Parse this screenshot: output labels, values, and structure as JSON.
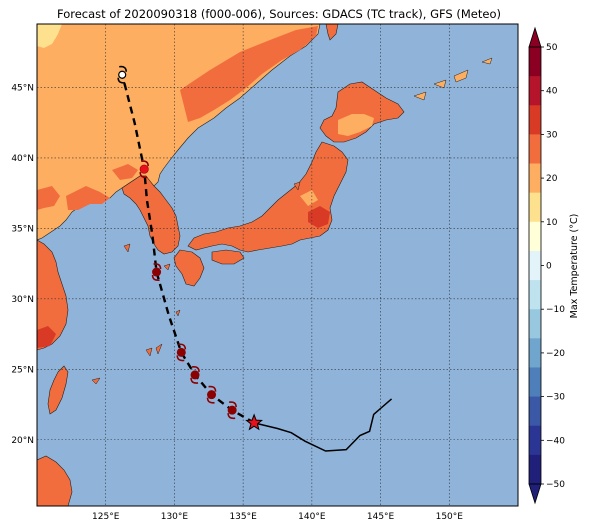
{
  "title": "Forecast of 2020090318 (f000-006), Sources: GDACS (TC track), GFS (Meteo)",
  "map": {
    "lon_range": [
      120,
      155
    ],
    "lat_range": [
      15.3,
      49.5
    ],
    "lon_ticks": [
      {
        "value": 125,
        "label": "125°E"
      },
      {
        "value": 130,
        "label": "130°E"
      },
      {
        "value": 135,
        "label": "135°E"
      },
      {
        "value": 140,
        "label": "140°E"
      },
      {
        "value": 145,
        "label": "145°E"
      },
      {
        "value": 150,
        "label": "150°E"
      }
    ],
    "lat_ticks": [
      {
        "value": 20,
        "label": "20°N"
      },
      {
        "value": 25,
        "label": "25°N"
      },
      {
        "value": 30,
        "label": "30°N"
      },
      {
        "value": 35,
        "label": "35°N"
      },
      {
        "value": 40,
        "label": "40°N"
      },
      {
        "value": 45,
        "label": "45°N"
      }
    ],
    "grid": true,
    "ocean_color": "#8fb3d9"
  },
  "colorbar": {
    "label": "Max Temperature (°C)",
    "ticks": [
      "50",
      "40",
      "30",
      "20",
      "10",
      "0",
      "−10",
      "−20",
      "−30",
      "−40",
      "−50"
    ],
    "colors_top_to_bottom": [
      "#8b0022",
      "#b5142a",
      "#d83a26",
      "#f26d3d",
      "#fdae61",
      "#fee18f",
      "#ffffd8",
      "#e2f4fa",
      "#bfe2ef",
      "#98c8e0",
      "#70a6ce",
      "#4f7fba",
      "#3a58a6",
      "#2b3694",
      "#20207a"
    ]
  },
  "track": {
    "past": [
      [
        145.8,
        22.9
      ],
      [
        144.5,
        21.8
      ],
      [
        144.2,
        20.6
      ],
      [
        143.5,
        20.3
      ],
      [
        142.5,
        19.3
      ],
      [
        141.0,
        19.2
      ],
      [
        139.5,
        19.9
      ],
      [
        138.5,
        20.5
      ],
      [
        137.5,
        20.8
      ],
      [
        135.8,
        21.2
      ]
    ],
    "current_position": [
      135.8,
      21.2
    ],
    "forecast": [
      [
        135.8,
        21.2
      ],
      [
        134.2,
        22.1
      ],
      [
        132.7,
        23.2
      ],
      [
        131.5,
        24.6
      ],
      [
        130.5,
        26.2
      ],
      [
        129.6,
        28.8
      ],
      [
        128.7,
        31.9
      ],
      [
        128.4,
        34.5
      ],
      [
        128.0,
        37.0
      ],
      [
        127.8,
        39.2
      ],
      [
        127.1,
        42.5
      ],
      [
        126.2,
        45.9
      ]
    ],
    "storm_symbols": [
      [
        134.2,
        22.1
      ],
      [
        132.7,
        23.2
      ],
      [
        131.5,
        24.6
      ],
      [
        130.5,
        26.2
      ],
      [
        128.7,
        31.9
      ],
      [
        127.8,
        39.2
      ]
    ],
    "last_symbol": [
      126.2,
      45.9
    ]
  }
}
